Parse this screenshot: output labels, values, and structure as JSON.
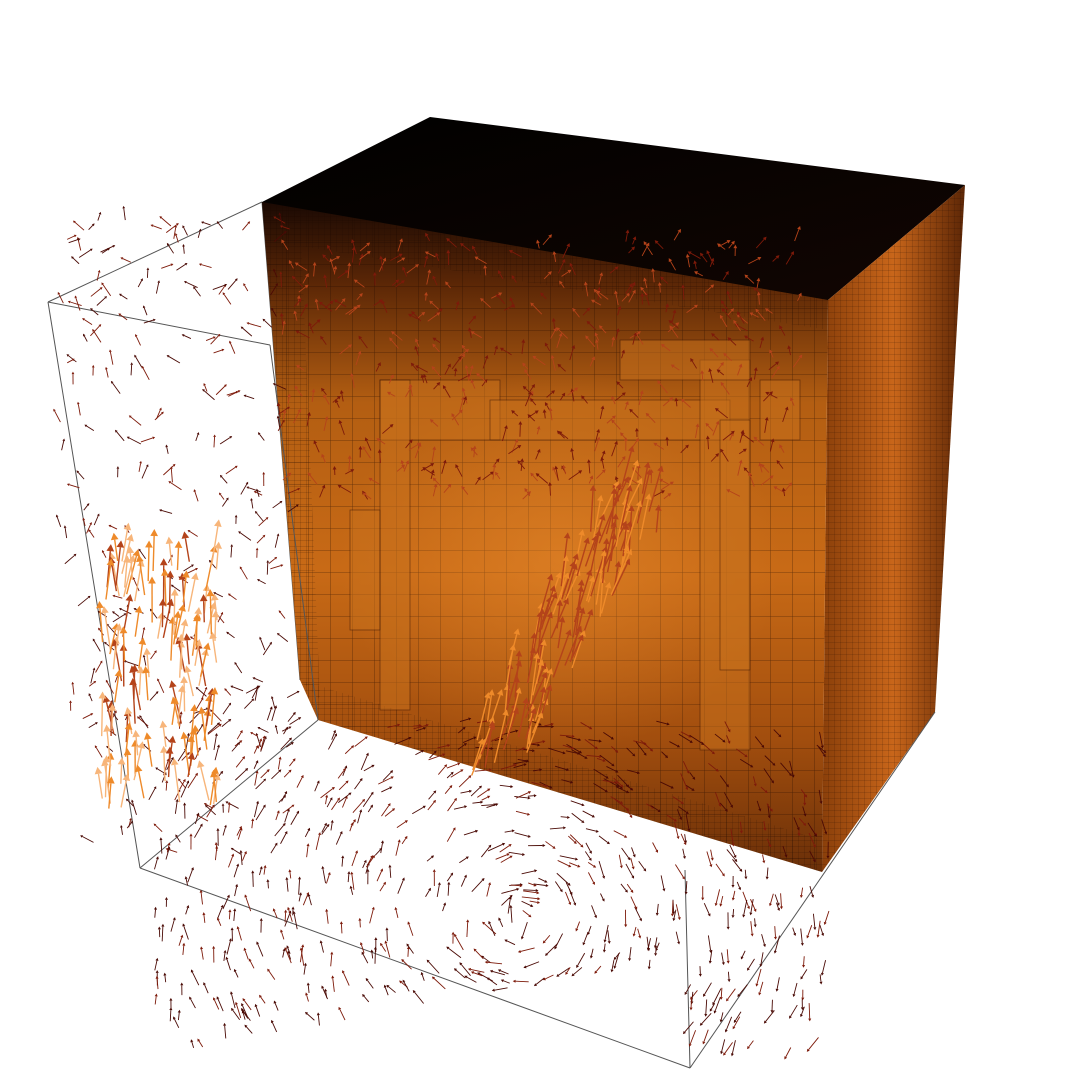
{
  "scene": {
    "background": "#ffffff",
    "bounding_box": {
      "line_color": "#555555"
    },
    "mesh": {
      "palette": {
        "top_dark": "#0b0402",
        "deep": "#5a2606",
        "mid": "#a8530d",
        "bright": "#e27d1c",
        "highlight": "#f5a54a",
        "grid_line": "#1a0700"
      }
    },
    "vectors": {
      "palette": {
        "weak": "#4a0a05",
        "low": "#7d1a0a",
        "mid": "#b4431a",
        "high": "#ee8a2a",
        "peak": "#f7b57a"
      }
    }
  }
}
